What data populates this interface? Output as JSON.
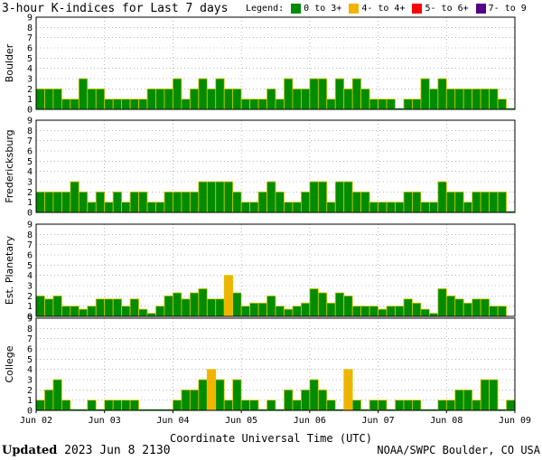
{
  "header": {
    "title": "3-hour K-indices for Last 7 days"
  },
  "legend": {
    "label": "Legend:",
    "items": [
      {
        "label": "0 to 3+",
        "color": "#008c00"
      },
      {
        "label": "4- to 4+",
        "color": "#f0b400"
      },
      {
        "label": "5- to 6+",
        "color": "#ff0000"
      },
      {
        "label": "7- to 9",
        "color": "#550088"
      }
    ]
  },
  "footer": {
    "updated_label": "Updated",
    "updated_value": "2023 Jun  8 2130",
    "source": "NOAA/SWPC Boulder, CO USA"
  },
  "chart_data": {
    "type": "bar",
    "xlabel": "Coordinate Universal Time (UTC)",
    "x_ticks": [
      "Jun 02",
      "Jun 03",
      "Jun 04",
      "Jun 05",
      "Jun 06",
      "Jun 07",
      "Jun 08",
      "Jun 09"
    ],
    "y_ticks": [
      "0",
      "1",
      "2",
      "3",
      "4",
      "5",
      "6",
      "7",
      "8",
      "9"
    ],
    "ylim": [
      0,
      9
    ],
    "grid": true,
    "bins_per_day": 8,
    "days": 7,
    "panels": [
      {
        "name": "Boulder",
        "values": [
          2,
          2,
          2,
          1,
          1,
          3,
          2,
          2,
          1,
          1,
          1,
          1,
          1,
          2,
          2,
          2,
          3,
          1,
          2,
          3,
          2,
          3,
          2,
          2,
          1,
          1,
          1,
          2,
          1,
          3,
          2,
          2,
          3,
          3,
          1,
          3,
          2,
          3,
          2,
          1,
          1,
          1,
          0,
          1,
          1,
          3,
          2,
          3,
          2,
          2,
          2,
          2,
          2,
          2,
          1,
          0
        ]
      },
      {
        "name": "Fredericksburg",
        "values": [
          2,
          2,
          2,
          2,
          3,
          2,
          1,
          2,
          1,
          2,
          1,
          2,
          2,
          1,
          1,
          2,
          2,
          2,
          2,
          3,
          3,
          3,
          3,
          2,
          1,
          1,
          2,
          3,
          2,
          1,
          1,
          2,
          3,
          3,
          1,
          3,
          3,
          2,
          2,
          1,
          1,
          1,
          1,
          2,
          2,
          1,
          1,
          3,
          2,
          2,
          1,
          2,
          2,
          2,
          2,
          0
        ]
      },
      {
        "name": "Est. Planetary",
        "values": [
          2,
          1.7,
          2,
          1,
          1,
          0.7,
          1,
          1.7,
          1.7,
          1.7,
          1,
          1.7,
          0.7,
          0.3,
          1,
          2,
          2.3,
          1.7,
          2.3,
          2.7,
          1.7,
          1.7,
          4,
          2.3,
          1,
          1.3,
          1.3,
          2,
          1,
          0.7,
          1,
          1.3,
          2.7,
          2.3,
          1.3,
          2.3,
          2,
          1,
          1,
          1,
          0.7,
          1,
          1,
          1.7,
          1.3,
          0.7,
          0.3,
          2.7,
          2,
          1.7,
          1.3,
          1.7,
          1.7,
          1,
          1
        ]
      },
      {
        "name": "College",
        "values": [
          1,
          2,
          3,
          1,
          0,
          0,
          1,
          0,
          1,
          1,
          1,
          1,
          0,
          0,
          0,
          0,
          1,
          2,
          2,
          3,
          4,
          3,
          1,
          3,
          1,
          1,
          0,
          1,
          0,
          2,
          1,
          2,
          3,
          2,
          1,
          0,
          4,
          1,
          0,
          1,
          1,
          0,
          1,
          1,
          1,
          0,
          0,
          1,
          1,
          2,
          2,
          1,
          3,
          3,
          0,
          1
        ]
      }
    ]
  }
}
